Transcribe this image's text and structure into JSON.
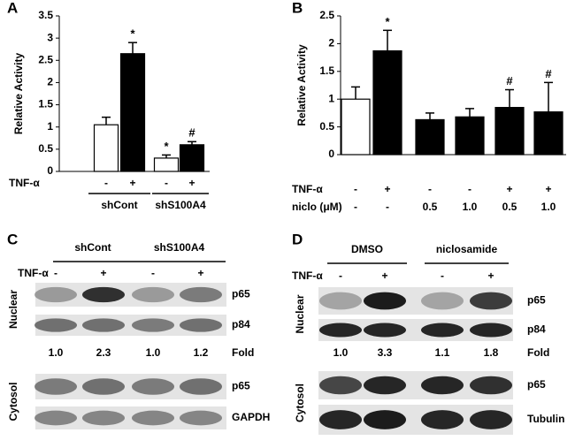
{
  "chart_data": [
    {
      "type": "bar",
      "panel_label": "A",
      "ylabel": "Relative Activity",
      "ylim": [
        0,
        3.5
      ],
      "yticks": [
        0,
        0.5,
        1,
        1.5,
        2,
        2.5,
        3,
        3.5
      ],
      "values": [
        1.05,
        2.65,
        0.3,
        0.6
      ],
      "errors": [
        0.17,
        0.25,
        0.07,
        0.07
      ],
      "colors": [
        "#ffffff",
        "#000000",
        "#ffffff",
        "#000000"
      ],
      "annotations": [
        null,
        "*",
        "*",
        "#"
      ],
      "rows": [
        {
          "label": "TNF-α",
          "values": [
            "-",
            "+",
            "-",
            "+"
          ]
        }
      ],
      "groups": [
        "shCont",
        "shS100A4"
      ]
    },
    {
      "type": "bar",
      "panel_label": "B",
      "ylabel": "Relative Activity",
      "ylim": [
        0,
        2.5
      ],
      "yticks": [
        0,
        0.5,
        1,
        1.5,
        2,
        2.5
      ],
      "values": [
        1.0,
        1.87,
        0.63,
        0.68,
        0.85,
        0.77
      ],
      "errors": [
        0.22,
        0.37,
        0.12,
        0.15,
        0.32,
        0.53
      ],
      "colors": [
        "#ffffff",
        "#000000",
        "#000000",
        "#000000",
        "#000000",
        "#000000"
      ],
      "annotations": [
        null,
        "*",
        null,
        null,
        "#",
        "#"
      ],
      "rows": [
        {
          "label": "TNF-α",
          "values": [
            "-",
            "+",
            "-",
            "-",
            "+",
            "+"
          ]
        },
        {
          "label": "niclo (μM)",
          "values": [
            "-",
            "-",
            "0.5",
            "1.0",
            "0.5",
            "1.0"
          ]
        }
      ]
    }
  ],
  "blots": [
    {
      "panel_label": "C",
      "groups": [
        "shCont",
        "shS100A4"
      ],
      "treatment": {
        "label": "TNF-α",
        "values": [
          "-",
          "+",
          "-",
          "+"
        ]
      },
      "nuclear": {
        "label": "Nuclear",
        "bands": [
          "p65",
          "p84"
        ]
      },
      "fold": {
        "label": "Fold",
        "values": [
          "1.0",
          "2.3",
          "1.0",
          "1.2"
        ]
      },
      "cytosol": {
        "label": "Cytosol",
        "bands": [
          "p65",
          "GAPDH"
        ]
      }
    },
    {
      "panel_label": "D",
      "groups": [
        "DMSO",
        "niclosamide"
      ],
      "treatment": {
        "label": "TNF-α",
        "values": [
          "-",
          "+",
          "-",
          "+"
        ]
      },
      "nuclear": {
        "label": "Nuclear",
        "bands": [
          "p65",
          "p84"
        ]
      },
      "fold": {
        "label": "Fold",
        "values": [
          "1.0",
          "3.3",
          "1.1",
          "1.8"
        ]
      },
      "cytosol": {
        "label": "Cytosol",
        "bands": [
          "p65",
          "Tubulin"
        ]
      }
    }
  ]
}
